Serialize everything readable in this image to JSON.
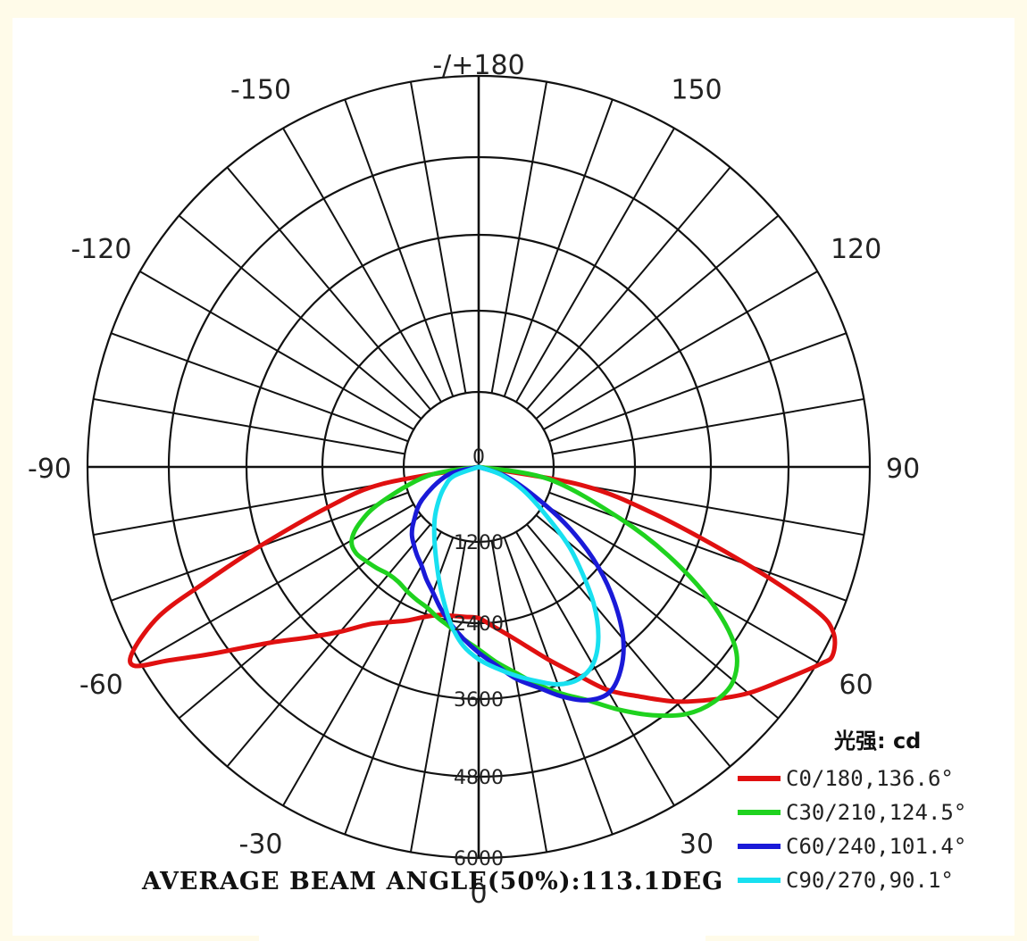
{
  "chart_data": {
    "type": "polar",
    "angle_labels": [
      {
        "angle": 180,
        "text": "-/+180"
      },
      {
        "angle": -150,
        "text": "-150"
      },
      {
        "angle": 150,
        "text": "150"
      },
      {
        "angle": -120,
        "text": "-120"
      },
      {
        "angle": 120,
        "text": "120"
      },
      {
        "angle": -90,
        "text": "-90"
      },
      {
        "angle": 90,
        "text": "90"
      },
      {
        "angle": -60,
        "text": "-60"
      },
      {
        "angle": 60,
        "text": "60"
      },
      {
        "angle": -30,
        "text": "-30"
      },
      {
        "angle": 30,
        "text": "30"
      },
      {
        "angle": 0,
        "text": "0"
      }
    ],
    "radial_ticks": [
      0,
      1200,
      2400,
      3600,
      4800,
      6000
    ],
    "radial_tick_labels": [
      "0",
      "1200",
      "2400",
      "3600",
      "4800",
      "6000"
    ],
    "r_max": 6000,
    "unit_label": "光强: cd",
    "series": [
      {
        "name": "C0/180,136.6°",
        "color": "#e01010",
        "angles": [
          -90,
          -80,
          -75,
          -70,
          -67,
          -65,
          -62,
          -60,
          -58,
          -55,
          -50,
          -45,
          -40,
          -35,
          -30,
          -25,
          -20,
          -15,
          -10,
          -5,
          0,
          5,
          10,
          15,
          20,
          25,
          30,
          35,
          40,
          45,
          50,
          55,
          60,
          62,
          65,
          67,
          70,
          75,
          80,
          90
        ],
        "values": [
          0,
          1500,
          2400,
          3600,
          4600,
          5400,
          6000,
          6100,
          5600,
          5000,
          4200,
          3700,
          3300,
          2950,
          2750,
          2600,
          2450,
          2350,
          2320,
          2310,
          2320,
          2450,
          2620,
          2850,
          3150,
          3500,
          3950,
          4300,
          4700,
          5050,
          5400,
          5700,
          6050,
          6150,
          6000,
          5600,
          4400,
          2800,
          1600,
          0
        ]
      },
      {
        "name": "C30/210,124.5°",
        "color": "#1fd21f",
        "angles": [
          -90,
          -80,
          -70,
          -65,
          -60,
          -55,
          -50,
          -45,
          -40,
          -35,
          -30,
          -25,
          -20,
          -15,
          -10,
          -5,
          0,
          5,
          10,
          15,
          20,
          25,
          30,
          35,
          40,
          45,
          50,
          55,
          60,
          65,
          70,
          80,
          90
        ],
        "values": [
          0,
          800,
          1600,
          2000,
          2250,
          2300,
          2250,
          2200,
          2150,
          2150,
          2200,
          2250,
          2300,
          2400,
          2500,
          2650,
          2800,
          3000,
          3200,
          3450,
          3700,
          3950,
          4300,
          4650,
          4950,
          5100,
          5100,
          4800,
          4100,
          3200,
          2300,
          1100,
          0
        ]
      },
      {
        "name": "C60/240,101.4°",
        "color": "#1a1ad8",
        "angles": [
          -90,
          -75,
          -60,
          -50,
          -45,
          -40,
          -35,
          -30,
          -25,
          -20,
          -15,
          -10,
          -5,
          0,
          5,
          10,
          15,
          20,
          25,
          30,
          35,
          40,
          45,
          50,
          55,
          60,
          70,
          90
        ],
        "values": [
          0,
          500,
          1000,
          1300,
          1450,
          1550,
          1650,
          1750,
          1900,
          2050,
          2250,
          2450,
          2650,
          2850,
          3050,
          3300,
          3500,
          3750,
          3950,
          4000,
          3800,
          3450,
          2950,
          2400,
          1800,
          1200,
          500,
          0
        ]
      },
      {
        "name": "C90/270,90.1°",
        "color": "#18e0f0",
        "angles": [
          -90,
          -70,
          -60,
          -50,
          -40,
          -30,
          -20,
          -15,
          -10,
          -5,
          0,
          5,
          10,
          15,
          20,
          25,
          30,
          35,
          40,
          45,
          50,
          60,
          70,
          90
        ],
        "values": [
          0,
          400,
          600,
          800,
          1050,
          1350,
          1800,
          2100,
          2450,
          2750,
          2950,
          3100,
          3250,
          3400,
          3550,
          3600,
          3500,
          3200,
          2750,
          2200,
          1700,
          900,
          400,
          0
        ]
      }
    ]
  },
  "avg_beam_text": "AVERAGE BEAM ANGLE(50%):113.1DEG"
}
